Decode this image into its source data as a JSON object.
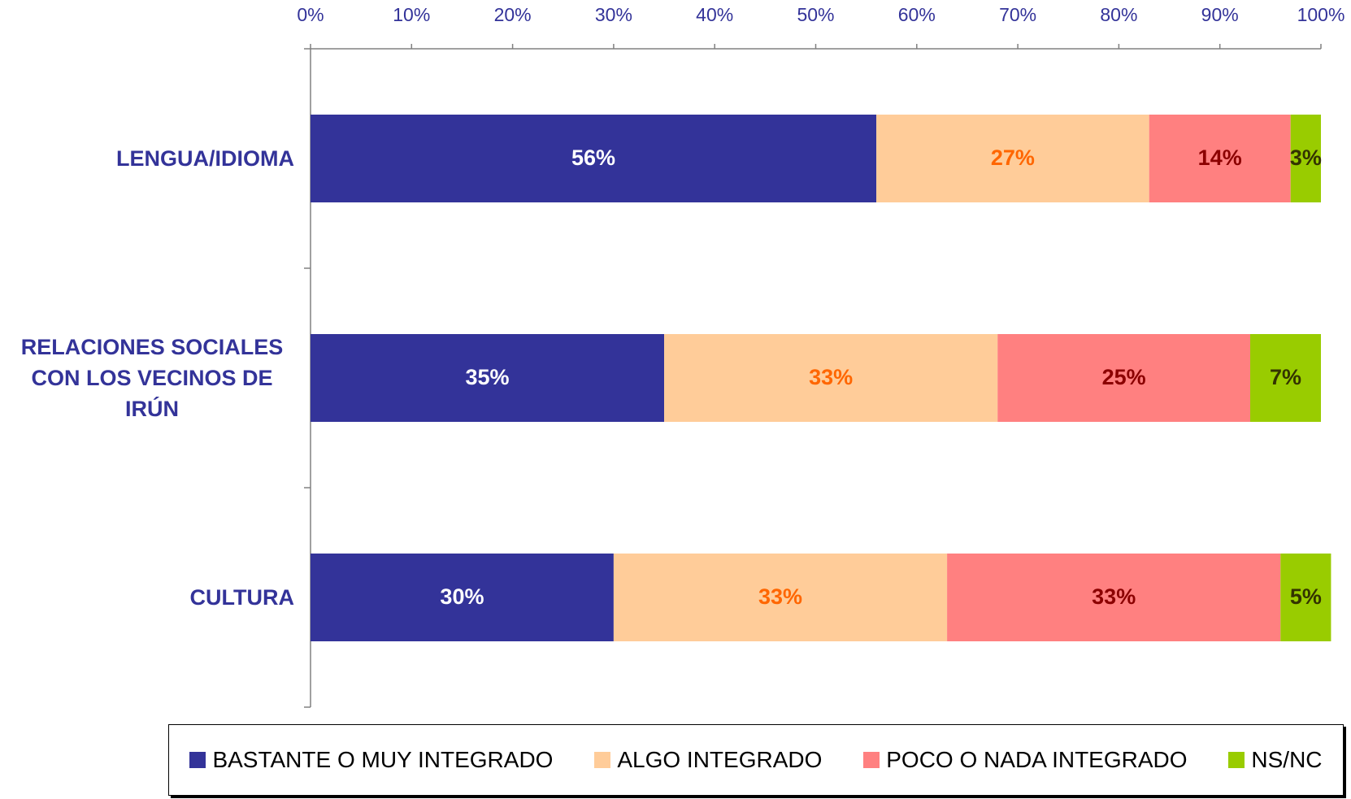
{
  "chart_data": {
    "type": "stacked_barh",
    "categories": [
      "LENGUA/IDIOMA",
      "RELACIONES SOCIALES CON LOS VECINOS DE IRÚN",
      "CULTURA"
    ],
    "series": [
      {
        "name": "BASTANTE O MUY INTEGRADO",
        "color": "#333399",
        "label_color": "#ffffff",
        "values": [
          56,
          35,
          30
        ],
        "value_labels": [
          "56%",
          "35%",
          "30%"
        ]
      },
      {
        "name": "ALGO INTEGRADO",
        "color": "#ffcc99",
        "label_color": "#ff6600",
        "values": [
          27,
          33,
          33
        ],
        "value_labels": [
          "27%",
          "33%",
          "33%"
        ]
      },
      {
        "name": "POCO O NADA INTEGRADO",
        "color": "#ff8080",
        "label_color": "#8b0000",
        "values": [
          14,
          25,
          33
        ],
        "value_labels": [
          "14%",
          "25%",
          "33%"
        ]
      },
      {
        "name": "NS/NC",
        "color": "#99cc00",
        "label_color": "#333300",
        "values": [
          3,
          7,
          5
        ],
        "value_labels": [
          "3%",
          "7%",
          "5%"
        ]
      }
    ],
    "xlim": [
      0,
      100
    ],
    "xticks": [
      {
        "value": 0,
        "label": "0%"
      },
      {
        "value": 10,
        "label": "10%"
      },
      {
        "value": 20,
        "label": "20%"
      },
      {
        "value": 30,
        "label": "30%"
      },
      {
        "value": 40,
        "label": "40%"
      },
      {
        "value": 50,
        "label": "50%"
      },
      {
        "value": 60,
        "label": "60%"
      },
      {
        "value": 70,
        "label": "70%"
      },
      {
        "value": 80,
        "label": "80%"
      },
      {
        "value": 90,
        "label": "90%"
      },
      {
        "value": 100,
        "label": "100%"
      }
    ],
    "legend": "bottom"
  }
}
